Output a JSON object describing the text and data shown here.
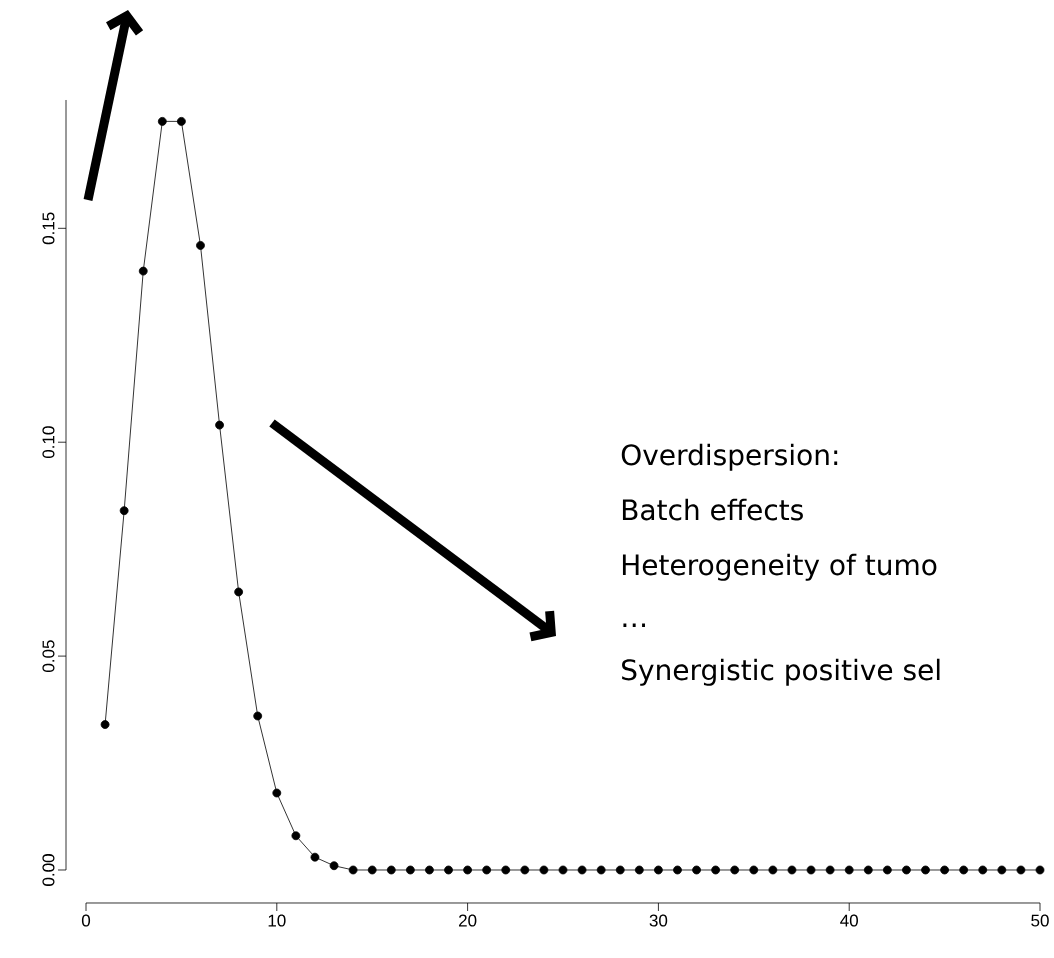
{
  "chart_data": {
    "type": "line",
    "x": [
      1,
      2,
      3,
      4,
      5,
      6,
      7,
      8,
      9,
      10,
      11,
      12,
      13,
      14,
      15,
      16,
      17,
      18,
      19,
      20,
      21,
      22,
      23,
      24,
      25,
      26,
      27,
      28,
      29,
      30,
      31,
      32,
      33,
      34,
      35,
      36,
      37,
      38,
      39,
      40,
      41,
      42,
      43,
      44,
      45,
      46,
      47,
      48,
      49,
      50
    ],
    "values": [
      0.034,
      0.084,
      0.14,
      0.175,
      0.175,
      0.146,
      0.104,
      0.065,
      0.036,
      0.018,
      0.008,
      0.003,
      0.001,
      0.0,
      0,
      0,
      0,
      0,
      0,
      0,
      0,
      0,
      0,
      0,
      0,
      0,
      0,
      0,
      0,
      0,
      0,
      0,
      0,
      0,
      0,
      0,
      0,
      0,
      0,
      0,
      0,
      0,
      0,
      0,
      0,
      0,
      0,
      0,
      0,
      0
    ],
    "color": "#000000",
    "marker": "circle",
    "line_style": "solid",
    "xlim": [
      0,
      50
    ],
    "ylim": [
      0,
      0.18
    ],
    "xticks": [
      0,
      10,
      20,
      30,
      40,
      50
    ],
    "yticks": [
      {
        "value": 0,
        "label": "0.00"
      },
      {
        "value": 0.05,
        "label": "0.05"
      },
      {
        "value": 0.1,
        "label": "0.10"
      },
      {
        "value": 0.15,
        "label": "0.15"
      }
    ],
    "annotations": [
      "Overdispersion:",
      "Batch effects",
      "Heterogeneity of tumo",
      "…",
      "Synergistic positive sel"
    ]
  }
}
